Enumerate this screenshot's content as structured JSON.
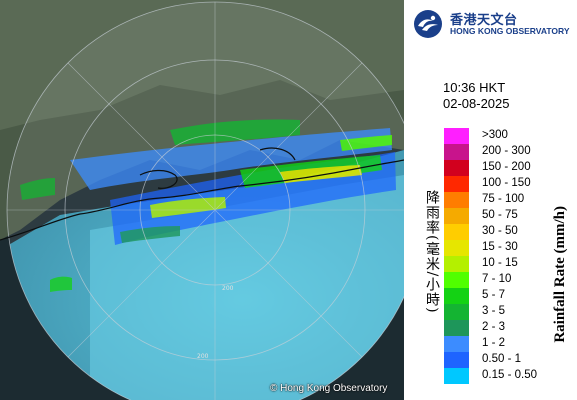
{
  "header": {
    "org_name_cn": "香港天文台",
    "org_name_en": "HONG KONG OBSERVATORY"
  },
  "timestamp": {
    "time": "10:36 HKT",
    "date": "02-08-2025"
  },
  "legend": {
    "title_cn": "降雨率(毫米/小時)",
    "title_en": "Rainfall Rate (mm/h)",
    "items": [
      {
        "label": ">300",
        "color": "#ff1fff"
      },
      {
        "label": "200 - 300",
        "color": "#c8148c"
      },
      {
        "label": "150 - 200",
        "color": "#d2001e"
      },
      {
        "label": "100 - 150",
        "color": "#ff2800"
      },
      {
        "label": "75 - 100",
        "color": "#ff7d00"
      },
      {
        "label": "50 - 75",
        "color": "#f5aa00"
      },
      {
        "label": "30 - 50",
        "color": "#ffcd00"
      },
      {
        "label": "15 - 30",
        "color": "#e6e600"
      },
      {
        "label": "10 - 15",
        "color": "#b4f000"
      },
      {
        "label": "7 - 10",
        "color": "#50ff00"
      },
      {
        "label": "5 - 7",
        "color": "#14d214"
      },
      {
        "label": "3 - 5",
        "color": "#14b432"
      },
      {
        "label": "2 - 3",
        "color": "#1e965a"
      },
      {
        "label": "1 - 2",
        "color": "#3c8cff"
      },
      {
        "label": "0.50 - 1",
        "color": "#1e64ff"
      },
      {
        "label": "0.15 - 0.50",
        "color": "#00c8ff"
      }
    ]
  },
  "map": {
    "copyright": "© Hong Kong Observatory",
    "range_labels": [
      "200",
      "200"
    ]
  }
}
